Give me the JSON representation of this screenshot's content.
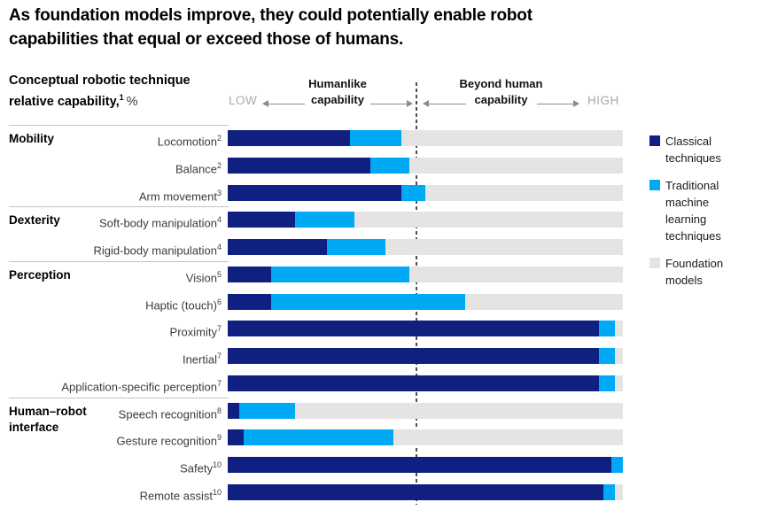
{
  "title_lines": [
    "As foundation models improve, they could potentially enable robot",
    "capabilities that equal or exceed those of humans."
  ],
  "chart_header": {
    "line1": "Conceptual robotic technique",
    "line2": "relative capability,",
    "sup": "1",
    "suffix": "%"
  },
  "axis": {
    "low": "LOW",
    "high": "HIGH",
    "left_label_line1": "Humanlike",
    "left_label_line2": "capability",
    "right_label_line1": "Beyond human",
    "right_label_line2": "capability"
  },
  "legend": [
    {
      "key": "classical",
      "label": "Classical techniques",
      "color": "#0f2080"
    },
    {
      "key": "traditional-ml",
      "label": "Traditional machine learning techniques",
      "color": "#00a9f4"
    },
    {
      "key": "foundation",
      "label": "Foundation models",
      "color": "#e5e4e2"
    }
  ],
  "chart_data": {
    "type": "bar",
    "orientation": "horizontal",
    "stacked": true,
    "unit": "%",
    "xlim": [
      0,
      100
    ],
    "divider_position_pct": 47.8,
    "series_names": [
      "Classical techniques",
      "Traditional machine learning techniques",
      "Foundation models"
    ],
    "series_keys": [
      "classical",
      "traditional-ml",
      "foundation"
    ],
    "colors": [
      "#0f2080",
      "#00a9f4",
      "#e5e4e2"
    ],
    "groups": [
      {
        "name": "Mobility",
        "rows": [
          {
            "label": "Locomotion",
            "sup": "2",
            "values": [
              31,
              13,
              56
            ]
          },
          {
            "label": "Balance",
            "sup": "2",
            "values": [
              36,
              10,
              54
            ]
          },
          {
            "label": "Arm movement",
            "sup": "3",
            "values": [
              44,
              6,
              50
            ]
          }
        ]
      },
      {
        "name": "Dexterity",
        "rows": [
          {
            "label": "Soft-body manipulation",
            "sup": "4",
            "values": [
              17,
              15,
              68
            ]
          },
          {
            "label": "Rigid-body manipulation",
            "sup": "4",
            "values": [
              25,
              15,
              60
            ]
          }
        ]
      },
      {
        "name": "Perception",
        "rows": [
          {
            "label": "Vision",
            "sup": "5",
            "values": [
              11,
              35,
              54
            ]
          },
          {
            "label": "Haptic (touch)",
            "sup": "6",
            "values": [
              11,
              49,
              40
            ]
          },
          {
            "label": "Proximity",
            "sup": "7",
            "values": [
              94,
              4,
              2
            ]
          },
          {
            "label": "Inertial",
            "sup": "7",
            "values": [
              94,
              4,
              2
            ]
          },
          {
            "label": "Application-specific perception",
            "sup": "7",
            "values": [
              94,
              4,
              2
            ]
          }
        ]
      },
      {
        "name": "Human–robot interface",
        "rows": [
          {
            "label": "Speech recognition",
            "sup": "8",
            "values": [
              3,
              14,
              83
            ]
          },
          {
            "label": "Gesture recognition",
            "sup": "9",
            "values": [
              4,
              38,
              58
            ]
          },
          {
            "label": "Safety",
            "sup": "10",
            "values": [
              97,
              3,
              0
            ]
          },
          {
            "label": "Remote assist",
            "sup": "10",
            "values": [
              95,
              3,
              2
            ]
          }
        ]
      }
    ]
  }
}
